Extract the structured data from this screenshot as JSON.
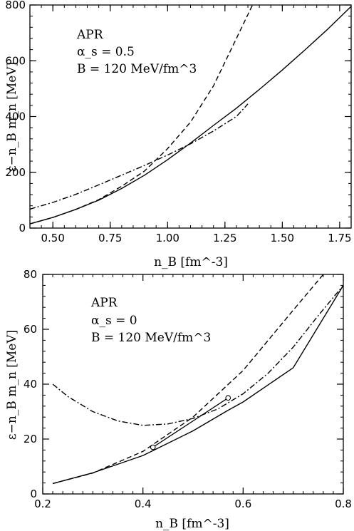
{
  "chart_data": [
    {
      "type": "line",
      "xlabel": "n_B [fm^-3]",
      "ylabel": "ε−n_B m_n [MeV]",
      "xlim": [
        0.4,
        1.8
      ],
      "ylim": [
        0,
        800
      ],
      "xticks": [
        0.5,
        0.75,
        1.0,
        1.25,
        1.5,
        1.75
      ],
      "xtick_labels": [
        "0.50",
        "0.75",
        "1.00",
        "1.25",
        "1.50",
        "1.75"
      ],
      "yticks": [
        0,
        200,
        400,
        600,
        800
      ],
      "ytick_labels": [
        "0",
        "200",
        "400",
        "600",
        "800"
      ],
      "annotations": [
        "APR",
        "α_s = 0.5",
        "B = 120 MeV/fm^3"
      ],
      "series": [
        {
          "style": "solid",
          "x": [
            0.4,
            0.5,
            0.6,
            0.7,
            0.8,
            0.9,
            1.0,
            1.1,
            1.2,
            1.3,
            1.4,
            1.5,
            1.6,
            1.7,
            1.8
          ],
          "y": [
            15,
            38,
            67,
            100,
            142,
            190,
            245,
            305,
            368,
            430,
            497,
            567,
            640,
            715,
            795
          ]
        },
        {
          "style": "dashed",
          "x": [
            0.4,
            0.5,
            0.6,
            0.7,
            0.8,
            0.9,
            1.0,
            1.1,
            1.2,
            1.3,
            1.37
          ],
          "y": [
            15,
            38,
            67,
            102,
            150,
            205,
            285,
            380,
            510,
            680,
            800
          ]
        },
        {
          "style": "dashdot",
          "x": [
            0.4,
            0.5,
            0.6,
            0.7,
            0.8,
            0.9,
            1.0,
            1.1,
            1.2,
            1.3,
            1.35
          ],
          "y": [
            68,
            92,
            121,
            155,
            190,
            225,
            262,
            302,
            348,
            400,
            445
          ]
        }
      ]
    },
    {
      "type": "line",
      "xlabel": "n_B [fm^-3]",
      "ylabel": "ε−n_B m_n [MeV]",
      "xlim": [
        0.2,
        0.8
      ],
      "ylim": [
        0,
        80
      ],
      "xticks": [
        0.2,
        0.4,
        0.6,
        0.8
      ],
      "xtick_labels": [
        "0.2",
        "0.4",
        "0.6",
        "0.8"
      ],
      "yticks": [
        0,
        20,
        40,
        60,
        80
      ],
      "ytick_labels": [
        "0",
        "20",
        "40",
        "60",
        "80"
      ],
      "annotations": [
        "APR",
        "α_s = 0",
        "B = 120 MeV/fm^3"
      ],
      "series": [
        {
          "style": "solid",
          "x": [
            0.22,
            0.3,
            0.4,
            0.42,
            0.5,
            0.57,
            0.6,
            0.7,
            0.8
          ],
          "y": [
            3.8,
            7.7,
            14.0,
            15.8,
            23.0,
            30.5,
            33.5,
            46.0,
            76.0
          ]
        },
        {
          "style": "solid-segment",
          "x": [
            0.42,
            0.57
          ],
          "y": [
            17.0,
            35.0
          ]
        },
        {
          "style": "dashed",
          "x": [
            0.22,
            0.3,
            0.4,
            0.5,
            0.6,
            0.7,
            0.76
          ],
          "y": [
            3.8,
            7.6,
            15.5,
            28.0,
            45.0,
            67.0,
            80.0
          ]
        },
        {
          "style": "dashdot",
          "x": [
            0.22,
            0.25,
            0.3,
            0.35,
            0.4,
            0.45,
            0.5,
            0.55,
            0.6,
            0.65,
            0.7,
            0.75,
            0.8
          ],
          "y": [
            40.0,
            35.5,
            30.0,
            26.6,
            25.0,
            25.5,
            27.5,
            31.0,
            36.5,
            44.0,
            53.5,
            65.0,
            76.0
          ]
        },
        {
          "style": "markers",
          "x": [
            0.42,
            0.57
          ],
          "y": [
            17.0,
            35.0
          ]
        }
      ]
    }
  ]
}
